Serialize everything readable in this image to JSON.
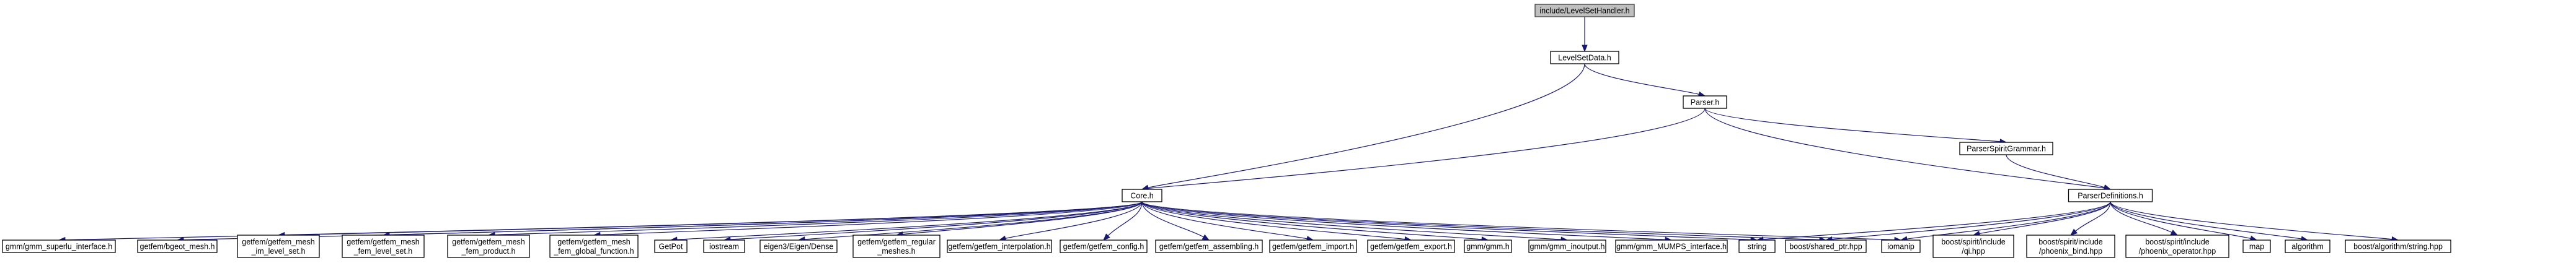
{
  "graph": {
    "nodes": [
      {
        "id": "root",
        "lines": [
          "include/LevelSetHandler.h"
        ],
        "kind": "root"
      },
      {
        "id": "levelsetdata",
        "lines": [
          "LevelSetData.h"
        ]
      },
      {
        "id": "parser",
        "lines": [
          "Parser.h"
        ]
      },
      {
        "id": "parserspiritgrammar",
        "lines": [
          "ParserSpiritGrammar.h"
        ]
      },
      {
        "id": "core",
        "lines": [
          "Core.h"
        ]
      },
      {
        "id": "parserdefinitions",
        "lines": [
          "ParserDefinitions.h"
        ]
      },
      {
        "id": "superlu",
        "lines": [
          "gmm/gmm_superlu_interface.h"
        ]
      },
      {
        "id": "bgeot_mesh",
        "lines": [
          "getfem/bgeot_mesh.h"
        ]
      },
      {
        "id": "mesh_im_level_set",
        "lines": [
          "getfem/getfem_mesh",
          "_im_level_set.h"
        ]
      },
      {
        "id": "mesh_fem_level_set",
        "lines": [
          "getfem/getfem_mesh",
          "_fem_level_set.h"
        ]
      },
      {
        "id": "mesh_fem_product",
        "lines": [
          "getfem/getfem_mesh",
          "_fem_product.h"
        ]
      },
      {
        "id": "mesh_fem_global_function",
        "lines": [
          "getfem/getfem_mesh",
          "_fem_global_function.h"
        ]
      },
      {
        "id": "getpot",
        "lines": [
          "GetPot"
        ]
      },
      {
        "id": "iostream",
        "lines": [
          "iostream"
        ]
      },
      {
        "id": "eigen_dense",
        "lines": [
          "eigen3/Eigen/Dense"
        ]
      },
      {
        "id": "regular_meshes",
        "lines": [
          "getfem/getfem_regular",
          "_meshes.h"
        ]
      },
      {
        "id": "interpolation",
        "lines": [
          "getfem/getfem_interpolation.h"
        ]
      },
      {
        "id": "config",
        "lines": [
          "getfem/getfem_config.h"
        ]
      },
      {
        "id": "assembling",
        "lines": [
          "getfem/getfem_assembling.h"
        ]
      },
      {
        "id": "import",
        "lines": [
          "getfem/getfem_import.h"
        ]
      },
      {
        "id": "export",
        "lines": [
          "getfem/getfem_export.h"
        ]
      },
      {
        "id": "gmm",
        "lines": [
          "gmm/gmm.h"
        ]
      },
      {
        "id": "gmm_inoutput",
        "lines": [
          "gmm/gmm_inoutput.h"
        ]
      },
      {
        "id": "mumps",
        "lines": [
          "gmm/gmm_MUMPS_interface.h"
        ]
      },
      {
        "id": "string",
        "lines": [
          "string"
        ]
      },
      {
        "id": "shared_ptr",
        "lines": [
          "boost/shared_ptr.hpp"
        ]
      },
      {
        "id": "iomanip",
        "lines": [
          "iomanip"
        ]
      },
      {
        "id": "qi",
        "lines": [
          "boost/spirit/include",
          "/qi.hpp"
        ]
      },
      {
        "id": "phoenix_bind",
        "lines": [
          "boost/spirit/include",
          "/phoenix_bind.hpp"
        ]
      },
      {
        "id": "phoenix_operator",
        "lines": [
          "boost/spirit/include",
          "/phoenix_operator.hpp"
        ]
      },
      {
        "id": "map",
        "lines": [
          "map"
        ]
      },
      {
        "id": "algorithm",
        "lines": [
          "algorithm"
        ]
      },
      {
        "id": "tiling",
        "lines": [
          "boost/algorithm/string.hpp"
        ]
      }
    ],
    "edges": [
      [
        "root",
        "levelsetdata"
      ],
      [
        "levelsetdata",
        "parser"
      ],
      [
        "levelsetdata",
        "core"
      ],
      [
        "parser",
        "core"
      ],
      [
        "parser",
        "parserspiritgrammar"
      ],
      [
        "parser",
        "parserdefinitions"
      ],
      [
        "parserspiritgrammar",
        "parserdefinitions"
      ],
      [
        "core",
        "superlu"
      ],
      [
        "core",
        "bgeot_mesh"
      ],
      [
        "core",
        "mesh_im_level_set"
      ],
      [
        "core",
        "mesh_fem_level_set"
      ],
      [
        "core",
        "mesh_fem_product"
      ],
      [
        "core",
        "mesh_fem_global_function"
      ],
      [
        "core",
        "getpot"
      ],
      [
        "core",
        "iostream"
      ],
      [
        "core",
        "eigen_dense"
      ],
      [
        "core",
        "regular_meshes"
      ],
      [
        "core",
        "interpolation"
      ],
      [
        "core",
        "config"
      ],
      [
        "core",
        "assembling"
      ],
      [
        "core",
        "import"
      ],
      [
        "core",
        "export"
      ],
      [
        "core",
        "gmm"
      ],
      [
        "core",
        "gmm_inoutput"
      ],
      [
        "core",
        "mumps"
      ],
      [
        "core",
        "string"
      ],
      [
        "core",
        "shared_ptr"
      ],
      [
        "core",
        "iomanip"
      ],
      [
        "parserdefinitions",
        "string"
      ],
      [
        "parserdefinitions",
        "shared_ptr"
      ],
      [
        "parserdefinitions",
        "iomanip"
      ],
      [
        "parserdefinitions",
        "qi"
      ],
      [
        "parserdefinitions",
        "phoenix_bind"
      ],
      [
        "parserdefinitions",
        "phoenix_operator"
      ],
      [
        "parserdefinitions",
        "map"
      ],
      [
        "parserdefinitions",
        "algorithm"
      ],
      [
        "parserdefinitions",
        "tiling"
      ]
    ]
  }
}
